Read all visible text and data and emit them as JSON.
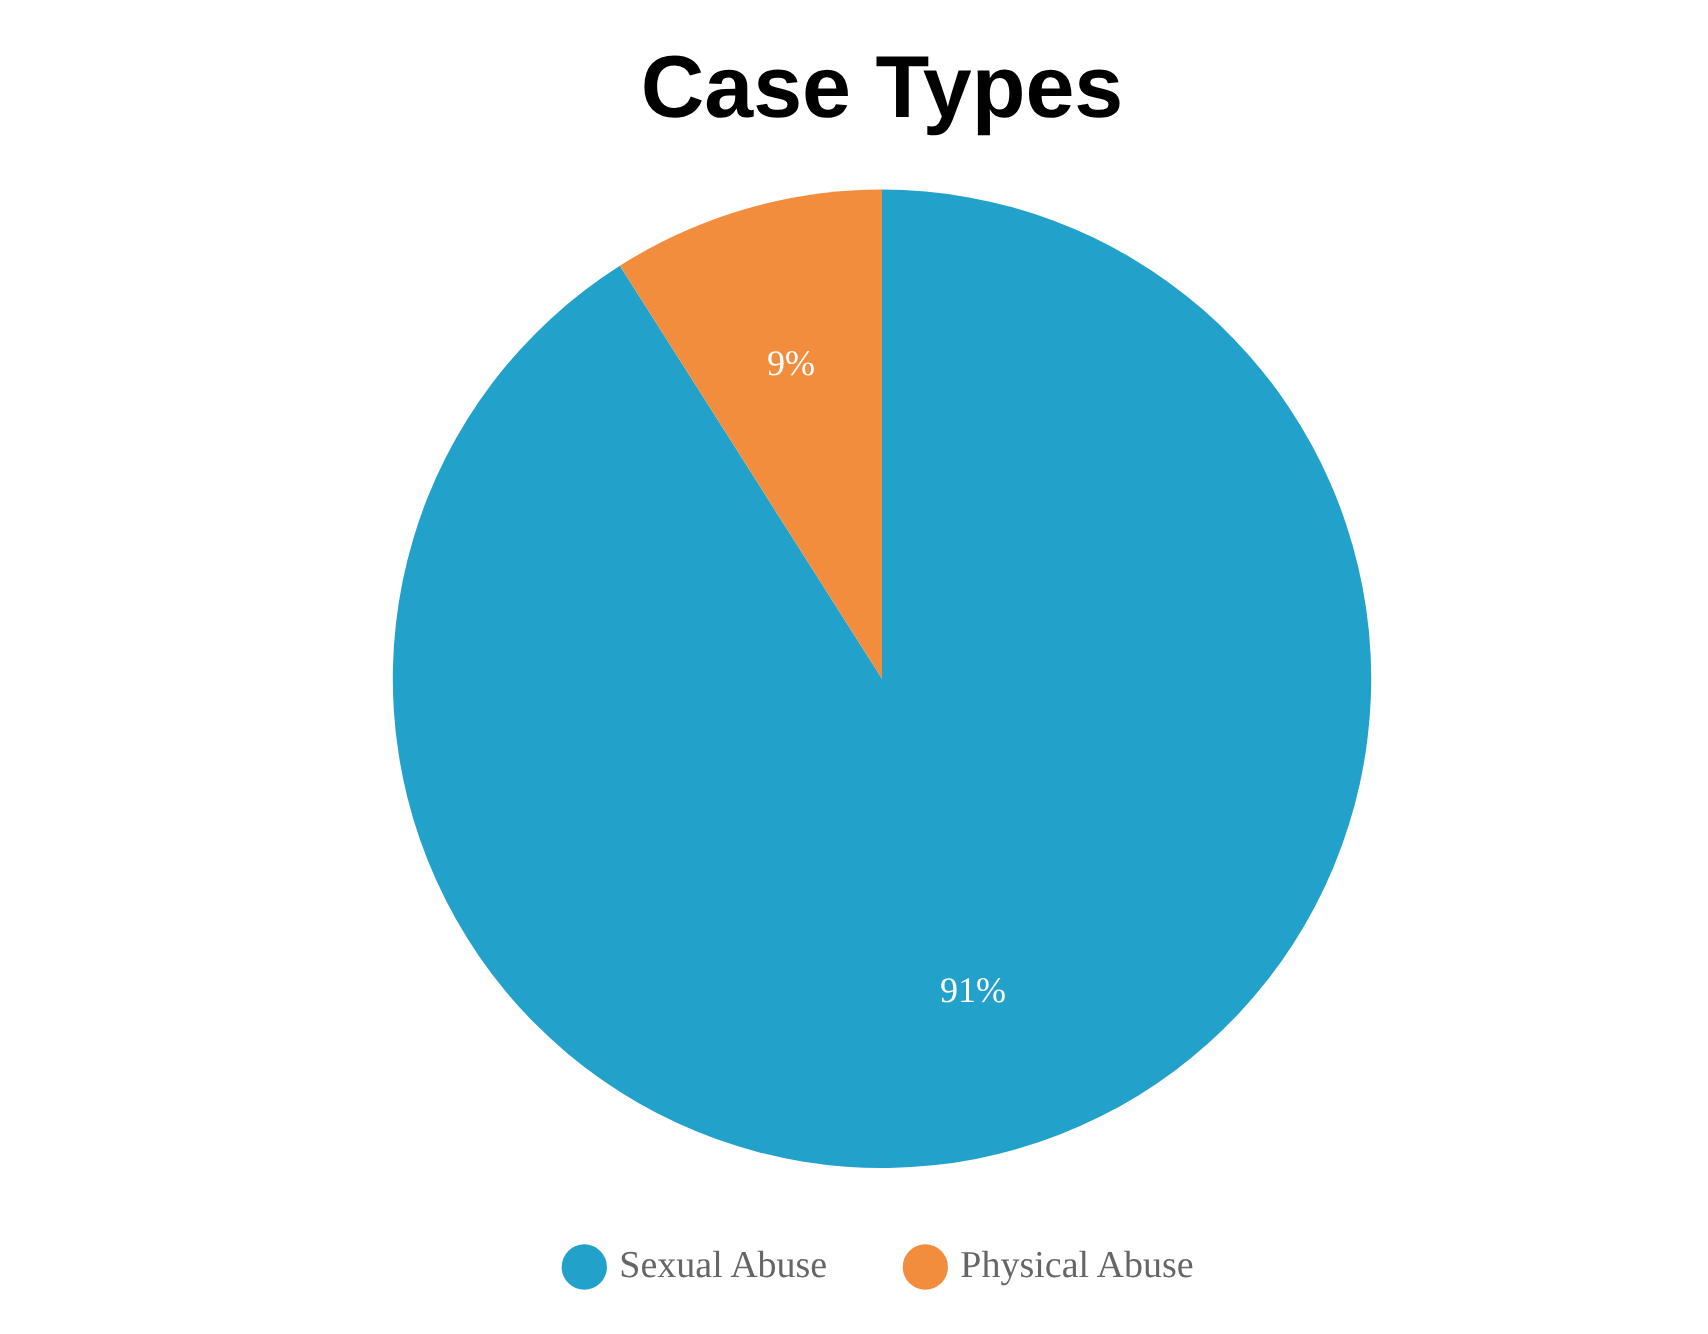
{
  "chart_data": {
    "type": "pie",
    "title": "Case Types",
    "categories": [
      "Sexual Abuse",
      "Physical Abuse"
    ],
    "values": [
      91,
      9
    ],
    "colors": [
      "#22a1ca",
      "#f18d3c"
    ],
    "value_labels": [
      "91%",
      "9%"
    ],
    "legend": "bottom"
  }
}
